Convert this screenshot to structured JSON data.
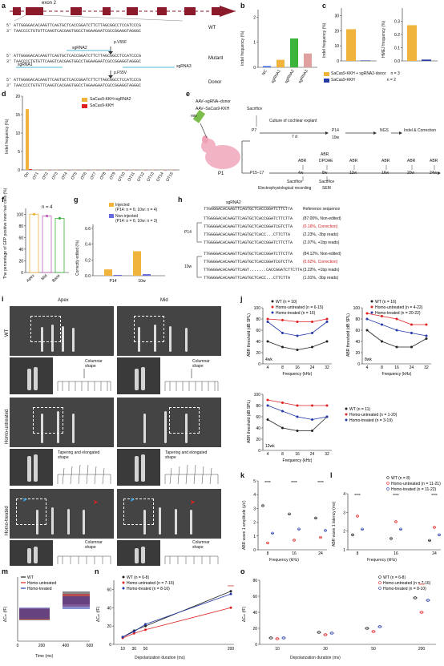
{
  "panel_letters": [
    "a",
    "b",
    "c",
    "d",
    "e",
    "f",
    "g",
    "h",
    "i",
    "j",
    "k",
    "l",
    "m",
    "n",
    "o"
  ],
  "a": {
    "exon_label": "exon 2",
    "rows": [
      {
        "tag": "WT",
        "s1": "5' ATTGGGGACACAAGTTCAGTGCTCACCGGATCTTCTTAGCGGCCTCCATCCCG",
        "s2": "3' TAACCCCTGTGTTCAAGTCACGAGTGGCCTAGAAGAATCGCCGGAGGTAGGGC"
      },
      {
        "tag": "Mutant",
        "s1": "5' ATTGGGGACACAAGTTCAGTGCTCACCGGATCTTCTTAGCGGCCTCCATCCCG",
        "s2": "3' TAACCCCTGTGTTCAAGTCACGAGTGGCCTAGAAGAATCGCCGGAGGTAGGGC"
      },
      {
        "tag": "Donor",
        "s1": "5' ATTGGGGACACAAGTTCAGTGCTCACCGGATCTTCTTAGCGGCCTCCATCCCG",
        "s2": "3' TAACCCCTGTGTTCAAGTCACGAGTGGCCTAGAAGAATCGCCGGAGGTAGGGC"
      }
    ],
    "mut1": "p.V55F",
    "mut2": "p.F55V",
    "sg1": "sgRNA1",
    "sg2": "sgRNA2",
    "sg3": "sgRNA3"
  },
  "b": {
    "ylabel": "Indel frequency (%)",
    "yticks": [
      "0",
      "1",
      "2"
    ],
    "cats": [
      "NC",
      "sgRNA1",
      "sgRNA2",
      "sgRNA3"
    ]
  },
  "c": {
    "ylabel1": "Indel frequency (%)",
    "ylabel2": "HMEJ frequency (%)",
    "yticks1": [
      "0",
      "10",
      "20",
      "30"
    ],
    "yticks2": [
      "0.0",
      "0.1",
      "0.2",
      "0.3"
    ],
    "legend": [
      {
        "label": "SaCas9-KKH + sgRNA2-donor",
        "n": "n = 3",
        "color": "#f0b43c"
      },
      {
        "label": "SaCas9-KKH",
        "n": "n = 2",
        "color": "#2438a6"
      }
    ]
  },
  "d": {
    "ylabel": "Indel frequency (%)",
    "yticks": [
      "0",
      "5",
      "10",
      "15",
      "20"
    ],
    "cats": [
      "On",
      "OT1",
      "OT2",
      "OT3",
      "OT4",
      "OT5",
      "OT6",
      "OT7",
      "OT8",
      "OT9",
      "OT10",
      "OT11",
      "OT12",
      "OT13",
      "OT14",
      "OT15"
    ],
    "legend": [
      {
        "label": "SaCas9-KKH+sgRNA2",
        "color": "#f0b43c"
      },
      {
        "label": "SaCas9-KKH",
        "color": "#e02020"
      }
    ]
  },
  "e": {
    "aav1": "AAV–sgRNA–donor",
    "aav2": "AAV–SaCas9-KKH",
    "mix": "mix",
    "p1": "P1",
    "sacrifice1": "Sacrifice",
    "p7": "P7",
    "culture": "Culture of cochlear explant",
    "d7": "7 d",
    "p14": "P14",
    "w10": "10w",
    "ngs": "NGS",
    "indel": "Indel & Correction",
    "p1517": "P15–17",
    "abr": "ABR",
    "dpoae": "DPOAE",
    "w4": "4w",
    "w8": "8w",
    "w12": "12w",
    "w16": "16w",
    "w20": "20w",
    "w24": "24w",
    "sacrifice2": "Sacrifice",
    "sem": "SEM",
    "ephys": "Electrophysiological recording"
  },
  "f": {
    "ylabel": "The percentage of GFP positive inner hair cells (%)",
    "n": "n = 4",
    "yticks": [
      "0",
      "20",
      "40",
      "60",
      "80",
      "100"
    ],
    "cats": [
      "Apex",
      "Mid",
      "Base"
    ]
  },
  "g": {
    "ylabel": "Correctly edited (%)",
    "yticks": [
      "0.0",
      "0.2",
      "0.4",
      "0.6"
    ],
    "cats": [
      "P14",
      "10w"
    ],
    "legend": [
      {
        "label": "Injected",
        "n": "(P14: n = 6; 10w: n = 4)",
        "color": "#f0b43c"
      },
      {
        "label": "Non-injected",
        "n": "(P14: n = 6; 10w: n = 3)",
        "color": "#6a6ae0"
      }
    ]
  },
  "h": {
    "sg": "sgRNA2",
    "p14": "P14",
    "w10": "10w",
    "rows": [
      {
        "seq": "TTGGGGACACAAGTTCAGTGCTCACCGGATCTTCTTA",
        "note": "Reference sequence",
        "red": false
      },
      {
        "seq": "TTGGGGACACAAGTTCAGTGCTCACCGGATCTTCTTA",
        "note": "(87.00%, Non-edited)",
        "red": false
      },
      {
        "seq": "TTGGGGACACAAGTTCAGTGCTCACCGGATCGTCTTA",
        "note": "(0.16%, Correction)",
        "red": true
      },
      {
        "seq": "TTGGGGACACAAGTTCAGTGCTCACC...CTTCTTA",
        "note": "(2.23%, -3bp reads)",
        "red": false
      },
      {
        "seq": "TTGGGGACACAAGTTCAGTGCTCACCGGATCTTCTTA",
        "note": "(2.07%, +1bp reads)",
        "red": false
      },
      {
        "seq": "TTGGGGACACAAGTTCAGTGCTCACCGGATCTTCTTA",
        "note": "(84.12%, Non-edited)",
        "red": false
      },
      {
        "seq": "TTGGGGACACAAGTTCAGTGCTCACCGGATCGTCTTA",
        "note": "(0.62%, Correction)",
        "red": true
      },
      {
        "seq": "TTGGGGACACAAGTTCAGT.......CACCGGATCTTCTTA",
        "note": "(3.22%, +1bp reads)",
        "red": false
      },
      {
        "seq": "TTGGGGACACAAGTTCAGTGCTCACC...CTTCTTA",
        "note": "(1.01%, -3bp reads)",
        "red": false
      }
    ]
  },
  "i": {
    "apex": "Apex",
    "mid": "Mid",
    "wt": "WT",
    "untreated": "Homo-untreated",
    "treated": "Homo-treated",
    "columnar": "Columnar shape",
    "tapering": "Tapering and elongated shape"
  },
  "j": {
    "ylabel": "ABR threshold (dB SPL)",
    "xlabel": "Frequency (kHz)",
    "xticks": [
      "4",
      "8",
      "16",
      "24",
      "32"
    ],
    "yticks": [
      "0",
      "20",
      "40",
      "60",
      "80",
      "100"
    ],
    "p1": {
      "tag": "4wk",
      "legend": [
        "WT (n = 10)",
        "Homo-untreated (n = 6-15)",
        "Homo-treated (n = 16)"
      ]
    },
    "p2": {
      "tag": "8wk",
      "legend": [
        "WT (n = 16)",
        "Homo-untreated (n = 4-22)",
        "Homo-treated (n = 20-22)"
      ]
    },
    "p3": {
      "tag": "12wk",
      "legend": [
        "WT (n = 11)",
        "Homo-untreated (n = 1-20)",
        "Homo-treated (n = 3-19)"
      ]
    },
    "stars": "****",
    "stars2": "**"
  },
  "k": {
    "ylabel": "ABR wave 1 amplitude (μV)",
    "xlabel": "Frequency (kHz)",
    "xticks": [
      "8",
      "16",
      "24"
    ],
    "yticks": [
      "0",
      "1",
      "2",
      "3",
      "4",
      "5"
    ],
    "stars": "****",
    "star1": "*"
  },
  "l": {
    "ylabel": "ABR wave 1 latency (ms)",
    "xlabel": "Frequency (kHz)",
    "xticks": [
      "8",
      "16",
      "24"
    ],
    "yticks": [
      "1",
      "2",
      "3",
      "4"
    ],
    "stars": "****",
    "star3": "***",
    "legend": [
      "WT (n = 8)",
      "Homo-untreated (n = 11-21)",
      "Homo-treated (n = 11-22)"
    ]
  },
  "m": {
    "ylabel": "ΔCₘ (fF)",
    "xlabel": "Time (ms)",
    "xticks": [
      "0",
      "200",
      "400",
      "600"
    ],
    "legend": [
      "WT",
      "Homo-untreated",
      "Homo-treated"
    ]
  },
  "n": {
    "ylabel": "ΔCₘ (fF)",
    "xlabel": "Depolarization duration (ms)",
    "xticks": [
      "10",
      "30",
      "50",
      "200"
    ],
    "yticks": [
      "0",
      "20",
      "40",
      "60"
    ],
    "legend": [
      "WT (n = 6-8)",
      "Homo-untreated (n = 7-16)",
      "Homo-treated (n = 8-10)"
    ],
    "stars": "****"
  },
  "o": {
    "ylabel": "ΔCₘ (fF)",
    "xlabel": "Depolarization duration (ms)",
    "xticks": [
      "10",
      "30",
      "50",
      "200"
    ],
    "legend": [
      "WT (n = 6-8)",
      "Homo-untreated (n = 7-16)",
      "Homo-treated (n = 8-10)"
    ],
    "stars": "****",
    "star1": "*"
  },
  "chart_data": [
    {
      "panel": "b",
      "type": "bar",
      "categories": [
        "NC",
        "sgRNA1",
        "sgRNA2",
        "sgRNA3"
      ],
      "values": [
        0.05,
        0.3,
        1.15,
        0.55
      ],
      "ylabel": "Indel frequency (%)",
      "ylim": [
        0,
        2.3
      ]
    },
    {
      "panel": "c-left",
      "type": "bar",
      "categories": [
        "SaCas9-KKH + sgRNA2-donor",
        "SaCas9-KKH"
      ],
      "values": [
        21,
        0.3
      ],
      "ylabel": "Indel frequency (%)",
      "ylim": [
        0,
        35
      ]
    },
    {
      "panel": "c-right",
      "type": "bar",
      "categories": [
        "SaCas9-KKH + sgRNA2-donor",
        "SaCas9-KKH"
      ],
      "values": [
        0.27,
        0.01
      ],
      "ylabel": "HMEJ frequency (%)",
      "ylim": [
        0,
        0.4
      ]
    },
    {
      "panel": "d",
      "type": "bar",
      "categories": [
        "On",
        "OT1",
        "OT2",
        "OT3",
        "OT4",
        "OT5",
        "OT6",
        "OT7",
        "OT8",
        "OT9",
        "OT10",
        "OT11",
        "OT12",
        "OT13",
        "OT14",
        "OT15"
      ],
      "series": [
        {
          "name": "SaCas9-KKH+sgRNA2",
          "values": [
            16.5,
            0,
            0,
            0,
            0,
            0,
            0,
            0,
            0,
            0,
            0,
            0,
            0,
            0,
            0,
            0
          ]
        },
        {
          "name": "SaCas9-KKH",
          "values": [
            0.2,
            0,
            0,
            0,
            0,
            0,
            0,
            0,
            0,
            0,
            0,
            0,
            0,
            0,
            0,
            0
          ]
        }
      ],
      "ylabel": "Indel frequency (%)",
      "ylim": [
        0,
        20
      ]
    },
    {
      "panel": "f",
      "type": "bar",
      "categories": [
        "Apex",
        "Mid",
        "Base"
      ],
      "values": [
        100,
        97,
        93
      ],
      "ylabel": "The percentage of GFP positive inner hair cells (%)",
      "ylim": [
        0,
        110
      ]
    },
    {
      "panel": "g",
      "type": "bar",
      "categories": [
        "P14",
        "10w"
      ],
      "series": [
        {
          "name": "Injected",
          "values": [
            0.08,
            0.31
          ]
        },
        {
          "name": "Non-injected",
          "values": [
            0.01,
            0.02
          ]
        }
      ],
      "ylabel": "Correctly edited (%)",
      "ylim": [
        0,
        0.65
      ]
    },
    {
      "panel": "j-4wk",
      "type": "line",
      "x": [
        "4",
        "8",
        "16",
        "24",
        "32"
      ],
      "series": [
        {
          "name": "WT (n = 10)",
          "values": [
            40,
            30,
            25,
            30,
            40
          ]
        },
        {
          "name": "Homo-untreated (n = 6-15)",
          "values": [
            80,
            78,
            75,
            75,
            80
          ]
        },
        {
          "name": "Homo-treated (n = 16)",
          "values": [
            75,
            55,
            50,
            55,
            75
          ]
        }
      ],
      "ylabel": "ABR threshold (dB SPL)",
      "xlabel": "Frequency (kHz)",
      "ylim": [
        0,
        100
      ]
    },
    {
      "panel": "j-8wk",
      "type": "line",
      "x": [
        "4",
        "8",
        "16",
        "24",
        "32"
      ],
      "series": [
        {
          "name": "WT (n = 16)",
          "values": [
            60,
            40,
            30,
            30,
            45
          ]
        },
        {
          "name": "Homo-untreated (n = 4-22)",
          "values": [
            90,
            85,
            80,
            70,
            70
          ]
        },
        {
          "name": "Homo-treated (n = 20-22)",
          "values": [
            80,
            70,
            60,
            55,
            50
          ]
        }
      ],
      "ylabel": "ABR threshold (dB SPL)",
      "xlabel": "Frequency (kHz)",
      "ylim": [
        0,
        100
      ]
    },
    {
      "panel": "j-12wk",
      "type": "line",
      "x": [
        "4",
        "8",
        "16",
        "24",
        "32"
      ],
      "series": [
        {
          "name": "WT (n = 11)",
          "values": [
            55,
            40,
            35,
            35,
            60
          ]
        },
        {
          "name": "Homo-untreated (n = 1-20)",
          "values": [
            90,
            85,
            80,
            80,
            80
          ]
        },
        {
          "name": "Homo-treated (n = 3-19)",
          "values": [
            80,
            70,
            60,
            55,
            60
          ]
        }
      ],
      "ylabel": "ABR threshold (dB SPL)",
      "xlabel": "Frequency (kHz)",
      "ylim": [
        0,
        100
      ]
    },
    {
      "panel": "k",
      "type": "scatter",
      "categories": [
        "8",
        "16",
        "24"
      ],
      "series": [
        {
          "name": "WT (n = 8)",
          "values": [
            3.2,
            2.6,
            2.3
          ]
        },
        {
          "name": "Homo-untreated (n = 11-21)",
          "values": [
            0.5,
            0.7,
            0.9
          ]
        },
        {
          "name": "Homo-treated (n = 11-22)",
          "values": [
            1.2,
            1.5,
            1.4
          ]
        }
      ],
      "ylabel": "ABR wave 1 amplitude (μV)",
      "xlabel": "Frequency (kHz)",
      "ylim": [
        0,
        5
      ]
    },
    {
      "panel": "l",
      "type": "scatter",
      "categories": [
        "8",
        "16",
        "24"
      ],
      "series": [
        {
          "name": "WT (n = 8)",
          "values": [
            1.8,
            1.6,
            1.5
          ]
        },
        {
          "name": "Homo-untreated (n = 11-21)",
          "values": [
            2.8,
            2.5,
            2.2
          ]
        },
        {
          "name": "Homo-treated (n = 11-22)",
          "values": [
            2.1,
            2.1,
            1.8
          ]
        }
      ],
      "ylabel": "ABR wave 1 latency (ms)",
      "xlabel": "Frequency (kHz)",
      "ylim": [
        1,
        4
      ]
    },
    {
      "panel": "n",
      "type": "line",
      "x": [
        "10",
        "30",
        "50",
        "200"
      ],
      "series": [
        {
          "name": "WT (n = 6-8)",
          "values": [
            8,
            15,
            20,
            58
          ]
        },
        {
          "name": "Homo-untreated (n = 7-16)",
          "values": [
            7,
            12,
            16,
            40
          ]
        },
        {
          "name": "Homo-treated (n = 8-10)",
          "values": [
            8,
            14,
            22,
            55
          ]
        }
      ],
      "ylabel": "ΔCₘ (fF)",
      "xlabel": "Depolarization duration (ms)",
      "ylim": [
        0,
        70
      ]
    },
    {
      "panel": "o",
      "type": "scatter",
      "categories": [
        "10",
        "30",
        "50",
        "200"
      ],
      "series": [
        {
          "name": "WT (n = 6-8)",
          "values": [
            8,
            15,
            20,
            58
          ]
        },
        {
          "name": "Homo-untreated (n = 7-16)",
          "values": [
            7,
            12,
            16,
            40
          ]
        },
        {
          "name": "Homo-treated (n = 8-10)",
          "values": [
            8,
            14,
            22,
            55
          ]
        }
      ],
      "ylabel": "ΔCₘ (fF)",
      "xlabel": "Depolarization duration (ms)",
      "ylim": [
        0,
        80
      ]
    }
  ]
}
